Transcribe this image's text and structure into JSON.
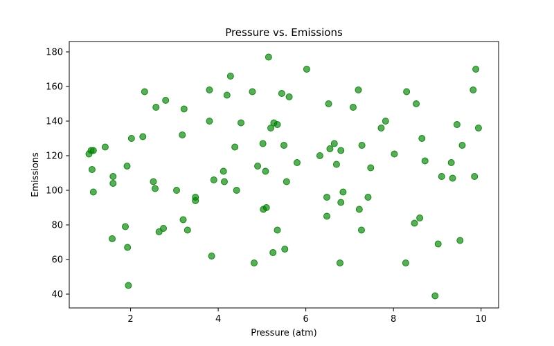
{
  "chart_data": {
    "type": "scatter",
    "title": "Pressure vs. Emissions",
    "xlabel": "Pressure (atm)",
    "ylabel": "Emissions",
    "xlim": [
      0.6,
      10.4
    ],
    "ylim": [
      32,
      186
    ],
    "xticks": [
      2,
      4,
      6,
      8,
      10
    ],
    "yticks": [
      40,
      60,
      80,
      100,
      120,
      140,
      160,
      180
    ],
    "grid": false,
    "legend": "none",
    "marker_color": "#008000",
    "marker_opacity": 0.65,
    "points": [
      [
        1.05,
        121
      ],
      [
        1.1,
        123
      ],
      [
        1.15,
        123
      ],
      [
        1.12,
        112
      ],
      [
        1.15,
        99
      ],
      [
        1.42,
        125
      ],
      [
        1.6,
        108
      ],
      [
        1.6,
        104
      ],
      [
        1.58,
        72
      ],
      [
        1.88,
        79
      ],
      [
        1.92,
        114
      ],
      [
        1.93,
        67
      ],
      [
        1.95,
        45
      ],
      [
        2.02,
        130
      ],
      [
        2.28,
        131
      ],
      [
        2.32,
        157
      ],
      [
        2.52,
        105
      ],
      [
        2.56,
        101
      ],
      [
        2.58,
        148
      ],
      [
        2.65,
        76
      ],
      [
        2.75,
        78
      ],
      [
        2.8,
        152
      ],
      [
        3.05,
        100
      ],
      [
        3.18,
        132
      ],
      [
        3.2,
        83
      ],
      [
        3.22,
        147
      ],
      [
        3.3,
        77
      ],
      [
        3.48,
        96
      ],
      [
        3.48,
        94
      ],
      [
        3.8,
        158
      ],
      [
        3.8,
        140
      ],
      [
        3.85,
        62
      ],
      [
        3.9,
        106
      ],
      [
        4.12,
        111
      ],
      [
        4.14,
        105
      ],
      [
        4.2,
        155
      ],
      [
        4.28,
        166
      ],
      [
        4.38,
        125
      ],
      [
        4.42,
        100
      ],
      [
        4.52,
        139
      ],
      [
        4.78,
        157
      ],
      [
        4.82,
        58
      ],
      [
        4.9,
        114
      ],
      [
        5.02,
        127
      ],
      [
        5.03,
        89
      ],
      [
        5.08,
        111
      ],
      [
        5.1,
        90
      ],
      [
        5.15,
        177
      ],
      [
        5.2,
        136
      ],
      [
        5.25,
        64
      ],
      [
        5.27,
        139
      ],
      [
        5.35,
        77
      ],
      [
        5.35,
        138
      ],
      [
        5.45,
        156
      ],
      [
        5.5,
        126
      ],
      [
        5.52,
        66
      ],
      [
        5.56,
        105
      ],
      [
        5.62,
        154
      ],
      [
        5.8,
        116
      ],
      [
        6.02,
        170
      ],
      [
        6.32,
        120
      ],
      [
        6.48,
        96
      ],
      [
        6.48,
        85
      ],
      [
        6.52,
        150
      ],
      [
        6.55,
        124
      ],
      [
        6.65,
        127
      ],
      [
        6.7,
        115
      ],
      [
        6.78,
        58
      ],
      [
        6.8,
        123
      ],
      [
        6.8,
        93
      ],
      [
        6.85,
        99
      ],
      [
        7.08,
        148
      ],
      [
        7.2,
        158
      ],
      [
        7.22,
        89
      ],
      [
        7.28,
        126
      ],
      [
        7.27,
        77
      ],
      [
        7.42,
        96
      ],
      [
        7.48,
        113
      ],
      [
        7.72,
        136
      ],
      [
        7.82,
        140
      ],
      [
        8.02,
        121
      ],
      [
        8.28,
        58
      ],
      [
        8.3,
        157
      ],
      [
        8.48,
        81
      ],
      [
        8.52,
        150
      ],
      [
        8.6,
        84
      ],
      [
        8.65,
        130
      ],
      [
        8.72,
        117
      ],
      [
        8.95,
        39
      ],
      [
        9.02,
        69
      ],
      [
        9.1,
        108
      ],
      [
        9.32,
        116
      ],
      [
        9.35,
        107
      ],
      [
        9.45,
        138
      ],
      [
        9.52,
        71
      ],
      [
        9.57,
        126
      ],
      [
        9.82,
        158
      ],
      [
        9.85,
        108
      ],
      [
        9.88,
        170
      ],
      [
        9.94,
        136
      ]
    ]
  }
}
